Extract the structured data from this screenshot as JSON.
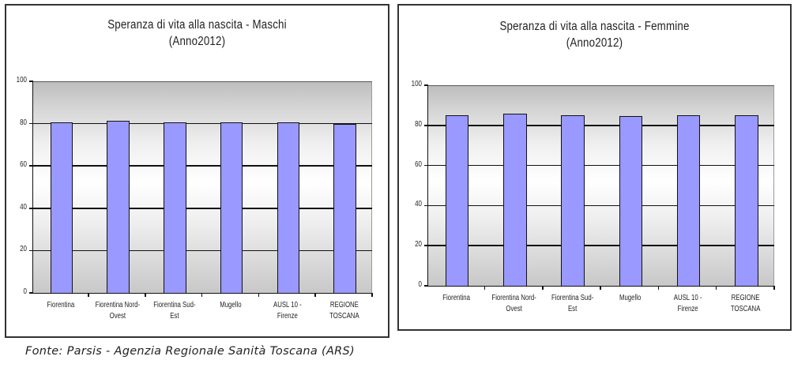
{
  "charts": [
    {
      "id": "maschi",
      "title_line1": "Speranza di vita alla nascita - Maschi",
      "title_line2": "(Anno2012)",
      "bar_color": "#9999ff",
      "y_ticks": [
        "0",
        "20",
        "40",
        "60",
        "80",
        "100"
      ],
      "categories": [
        {
          "line1": "Fiorentina",
          "line2": ""
        },
        {
          "line1": "Fiorentina Nord-",
          "line2": "Ovest"
        },
        {
          "line1": "Fiorentina Sud-",
          "line2": "Est"
        },
        {
          "line1": "Mugello",
          "line2": ""
        },
        {
          "line1": "AUSL 10 -",
          "line2": "Firenze"
        },
        {
          "line1": "REGIONE",
          "line2": "TOSCANA"
        }
      ]
    },
    {
      "id": "femmine",
      "title_line1": "Speranza di vita alla nascita - Femmine",
      "title_line2": "(Anno2012)",
      "bar_color": "#9999ff",
      "y_ticks": [
        "0",
        "20",
        "40",
        "60",
        "80",
        "100"
      ],
      "categories": [
        {
          "line1": "Fiorentina",
          "line2": ""
        },
        {
          "line1": "Fiorentina Nord-",
          "line2": "Ovest"
        },
        {
          "line1": "Fiorentina Sud-",
          "line2": "Est"
        },
        {
          "line1": "Mugello",
          "line2": ""
        },
        {
          "line1": "AUSL 10 -",
          "line2": "Firenze"
        },
        {
          "line1": "REGIONE",
          "line2": "TOSCANA"
        }
      ]
    }
  ],
  "source": "Fonte:  Parsis - Agenzia Regionale Sanità Toscana (ARS)",
  "chart_data": [
    {
      "type": "bar",
      "title": "Speranza di vita alla nascita - Maschi (Anno2012)",
      "xlabel": "",
      "ylabel": "",
      "categories": [
        "Fiorentina",
        "Fiorentina Nord-Ovest",
        "Fiorentina Sud-Est",
        "Mugello",
        "AUSL 10 - Firenze",
        "REGIONE TOSCANA"
      ],
      "values": [
        80.5,
        81.2,
        80.6,
        80.5,
        80.6,
        79.7
      ],
      "ylim": [
        0,
        100
      ],
      "yticks": [
        0,
        20,
        40,
        60,
        80,
        100
      ],
      "grid": true,
      "legend": "none"
    },
    {
      "type": "bar",
      "title": "Speranza di vita alla nascita - Femmine (Anno2012)",
      "xlabel": "",
      "ylabel": "",
      "categories": [
        "Fiorentina",
        "Fiorentina Nord-Ovest",
        "Fiorentina Sud-Est",
        "Mugello",
        "AUSL 10 - Firenze",
        "REGIONE TOSCANA"
      ],
      "values": [
        85.0,
        85.8,
        85.2,
        84.6,
        85.2,
        85.0
      ],
      "ylim": [
        0,
        100
      ],
      "yticks": [
        0,
        20,
        40,
        60,
        80,
        100
      ],
      "grid": true,
      "legend": "none"
    }
  ]
}
